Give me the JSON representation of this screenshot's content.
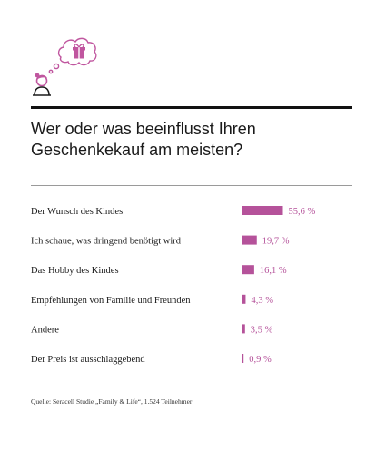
{
  "title": "Wer oder was beeinflusst Ihren Geschenkekauf am meisten?",
  "source": "Quelle: Seracell Studie „Family & Life“, 1.524 Teilnehmer",
  "colors": {
    "bar": "#b5529a",
    "value_text": "#b5529a",
    "icon": "#c0569f"
  },
  "icons": [
    "person-icon",
    "thought-bubble-icon",
    "gift-icon"
  ],
  "chart_data": {
    "type": "bar",
    "orientation": "horizontal",
    "title": "Wer oder was beeinflusst Ihren Geschenkekauf am meisten?",
    "categories": [
      "Der Wunsch des Kindes",
      "Ich schaue, was dringend benötigt wird",
      "Das Hobby des Kindes",
      "Empfehlungen von Familie und Freunden",
      "Andere",
      "Der Preis ist ausschlaggebend"
    ],
    "values": [
      55.6,
      19.7,
      16.1,
      4.3,
      3.5,
      0.9
    ],
    "value_labels": [
      "55,6 %",
      "19,7 %",
      "16,1 %",
      "4,3 %",
      "3,5 %",
      "0,9 %"
    ],
    "xlim": [
      0,
      55.6
    ],
    "grid": false
  }
}
